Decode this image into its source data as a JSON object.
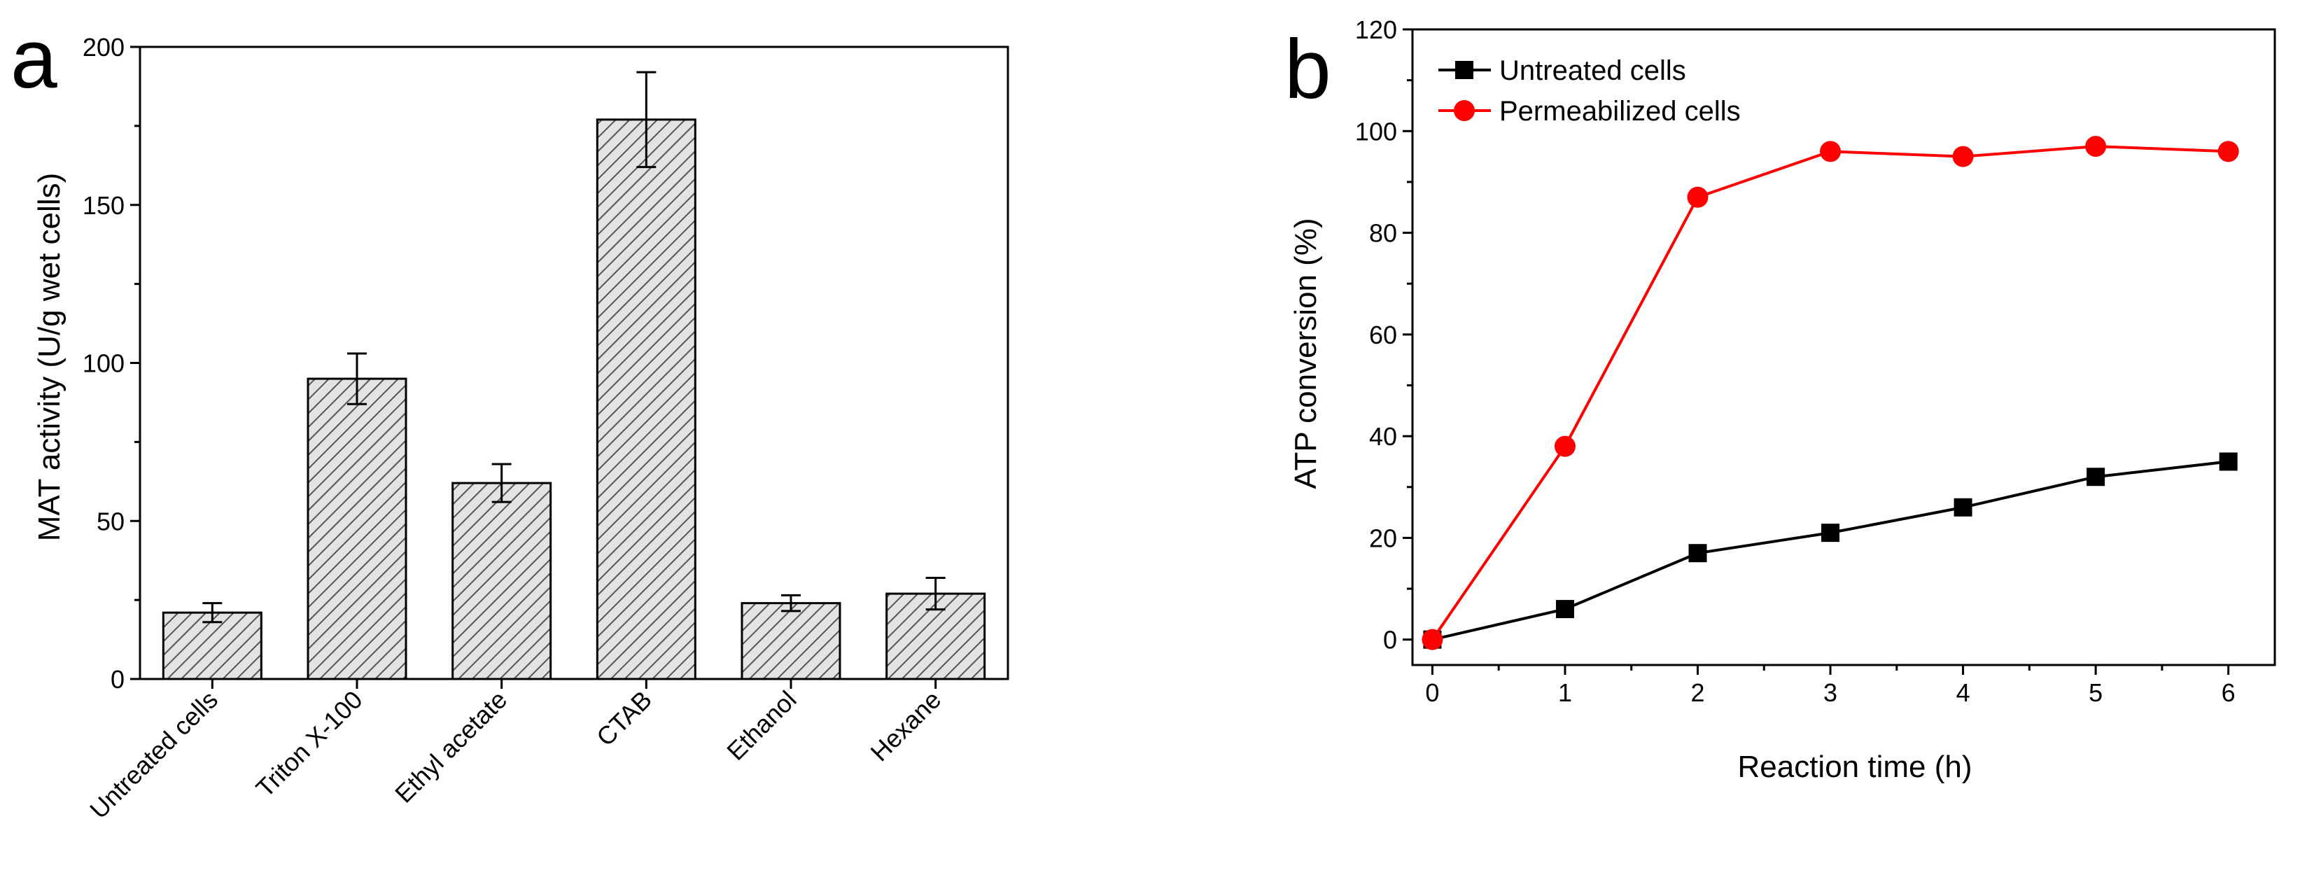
{
  "panels": [
    {
      "label": "a"
    },
    {
      "label": "b"
    }
  ],
  "chart_data": [
    {
      "type": "bar",
      "title": "",
      "xlabel": "",
      "ylabel": "MAT activity (U/g wet cells)",
      "categories": [
        "Untreated cells",
        "Triton X-100",
        "Ethyl acetate",
        "CTAB",
        "Ethanol",
        "Hexane"
      ],
      "values": [
        21,
        95,
        62,
        177,
        24,
        27
      ],
      "errors": [
        3,
        8,
        6,
        15,
        2.5,
        5
      ],
      "ylim": [
        0,
        200
      ],
      "yticks": [
        0,
        50,
        100,
        150,
        200
      ],
      "bar_fill": "hatched",
      "colors": {
        "bar_fill": "#d9d9d9",
        "hatch": "#555555",
        "edge": "#000000"
      }
    },
    {
      "type": "line",
      "title": "",
      "xlabel": "Reaction time (h)",
      "ylabel": "ATP conversion (%)",
      "x": [
        0,
        1,
        2,
        3,
        4,
        5,
        6
      ],
      "xlim": [
        -0.15,
        6.35
      ],
      "ylim": [
        -5,
        120
      ],
      "xticks": [
        0,
        1,
        2,
        3,
        4,
        5,
        6
      ],
      "yticks": [
        0,
        20,
        40,
        60,
        80,
        100,
        120
      ],
      "legend_position": "top-left",
      "series": [
        {
          "name": "Untreated cells",
          "values": [
            0,
            6,
            17,
            21,
            26,
            32,
            35
          ],
          "color": "#000000",
          "marker": "square"
        },
        {
          "name": "Permeabilized cells",
          "values": [
            0,
            38,
            87,
            96,
            95,
            97,
            96
          ],
          "color": "#ff0000",
          "marker": "circle"
        }
      ]
    }
  ]
}
